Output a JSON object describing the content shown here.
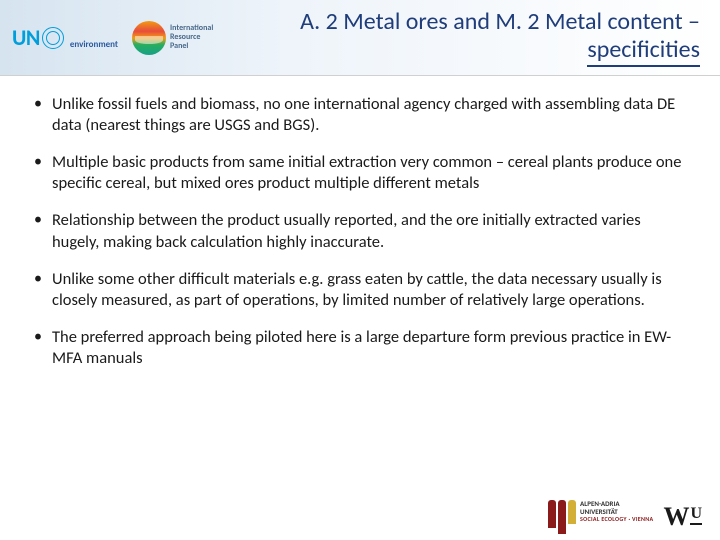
{
  "header": {
    "un_text": "UN",
    "env_text": "environment",
    "irp_line1": "International",
    "irp_line2": "Resource",
    "irp_line3": "Panel",
    "title_line1": "A. 2  Metal ores and M. 2 Metal content –",
    "title_line2": "specificities"
  },
  "bullets": [
    "Unlike fossil fuels and biomass, no one international agency charged with assembling data DE data (nearest things are USGS and BGS).",
    "Multiple basic products from same initial extraction very common – cereal plants produce  one specific cereal, but mixed ores product multiple different metals",
    "Relationship between the product usually reported, and the ore initially extracted varies hugely, making back calculation highly inaccurate.",
    "Unlike some other difficult materials e.g. grass eaten by cattle, the data necessary usually is closely measured, as part of operations, by  limited number of relatively large operations.",
    "The preferred approach being piloted here is a large departure form previous practice in EW-MFA manuals"
  ],
  "footer": {
    "aau_line1": "ALPEN-ADRIA",
    "aau_line2": "UNIVERSITÄT",
    "aau_sub": "SOCIAL ECOLOGY · VIENNA",
    "wu_w": "W",
    "wu_u": "U"
  },
  "colors": {
    "title_color": "#1f3d7a",
    "un_blue": "#009edb",
    "body_text": "#1a1a1a",
    "aau_red": "#8b1a1a"
  }
}
